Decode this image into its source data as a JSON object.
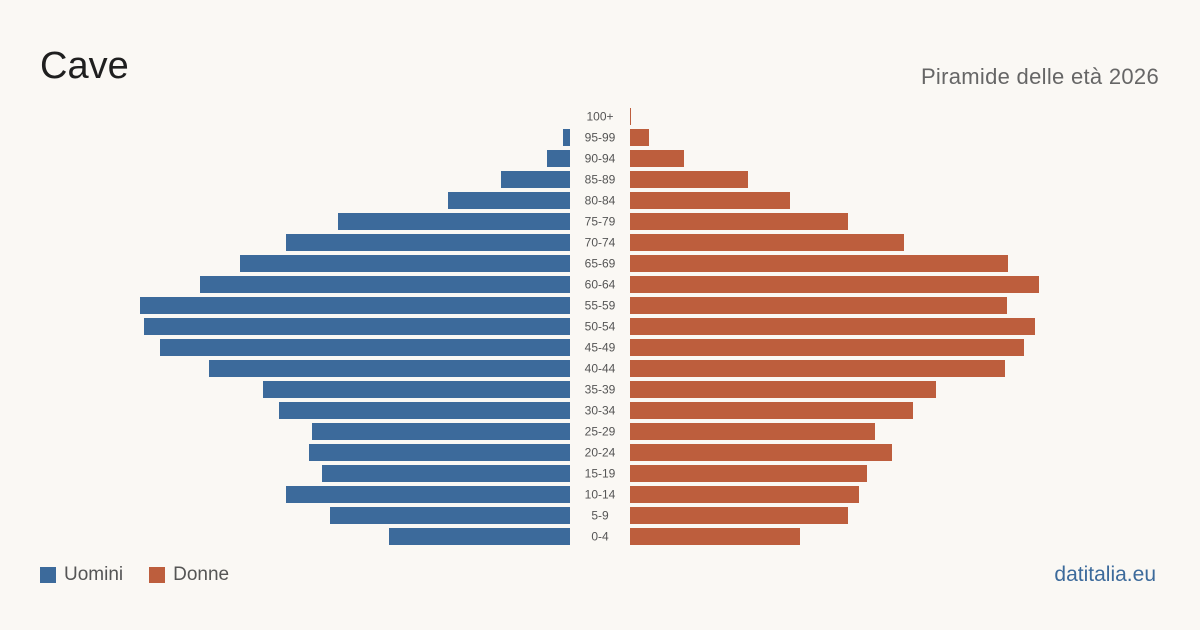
{
  "header": {
    "title": "Cave",
    "subtitle": "Piramide delle età 2026"
  },
  "legend": {
    "male_label": "Uomini",
    "female_label": "Donne"
  },
  "brand": "datitalia.eu",
  "colors": {
    "male": "#3c6a9b",
    "female": "#bd5e3d",
    "background": "#faf8f4"
  },
  "chart_data": {
    "type": "bar",
    "orientation": "horizontal-pyramid",
    "categories": [
      "100+",
      "95-99",
      "90-94",
      "85-89",
      "80-84",
      "75-79",
      "70-74",
      "65-69",
      "60-64",
      "55-59",
      "50-54",
      "45-49",
      "40-44",
      "35-39",
      "30-34",
      "25-29",
      "20-24",
      "15-19",
      "10-14",
      "5-9",
      "0-4"
    ],
    "series": [
      {
        "name": "Uomini",
        "values": [
          0,
          7,
          23,
          69,
          122,
          232,
          284,
          330,
          370,
          430,
          426,
          410,
          361,
          307,
          291,
          258,
          261,
          248,
          284,
          240,
          181
        ]
      },
      {
        "name": "Donne",
        "values": [
          1,
          19,
          54,
          118,
          160,
          218,
          274,
          378,
          409,
          377,
          405,
          394,
          375,
          306,
          283,
          245,
          262,
          237,
          229,
          218,
          170
        ]
      }
    ],
    "xlabel": "",
    "ylabel": "",
    "grid": false,
    "legend_position": "bottom-left"
  }
}
